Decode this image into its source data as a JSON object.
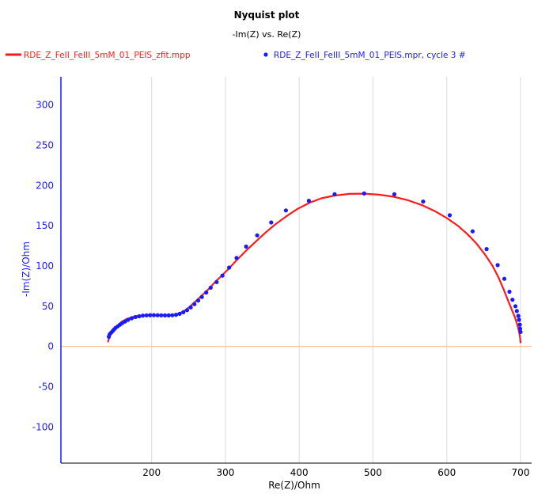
{
  "chart_data": {
    "type": "scatter",
    "title": "Nyquist plot",
    "subtitle": "-Im(Z) vs. Re(Z)",
    "xlabel": "Re(Z)/Ohm",
    "ylabel": "-Im(Z)/Ohm",
    "xlim": [
      77,
      715
    ],
    "ylim": [
      -145,
      335
    ],
    "x_ticks": [
      200,
      300,
      400,
      500,
      600,
      700
    ],
    "y_ticks": [
      -100,
      -50,
      0,
      50,
      100,
      150,
      200,
      250,
      300
    ],
    "grid": true,
    "legend_position": "top",
    "zero_line": true,
    "colors": {
      "fit": "#ff1a1a",
      "measured": "#1a1aff",
      "y_axis": "#1a1aff",
      "grid": "#d9d9d9",
      "zero_line": "#f5cba7"
    },
    "series": [
      {
        "name": "RDE_Z_FeII_FeIII_5mM_01_PEIS_zfit.mpp",
        "kind": "line",
        "x": [
          141,
          143,
          146,
          150,
          155,
          160,
          166,
          172,
          178,
          185,
          192,
          200,
          208,
          216,
          224,
          232,
          238,
          244,
          250,
          256,
          262,
          270,
          278,
          286,
          295,
          305,
          315,
          328,
          342,
          355,
          368,
          383,
          398,
          414,
          430,
          448,
          468,
          488,
          508,
          528,
          548,
          568,
          585,
          600,
          615,
          628,
          640,
          652,
          662,
          670,
          677,
          683,
          688,
          692,
          695,
          697,
          698.5,
          699.5,
          700
        ],
        "y": [
          6,
          13,
          18,
          23,
          27,
          31,
          34,
          36,
          37.5,
          38.2,
          38.5,
          38.7,
          38.6,
          38.4,
          38.5,
          39.2,
          41,
          44,
          48,
          53,
          58,
          65,
          72,
          80,
          88,
          97,
          107,
          119,
          131,
          142,
          152,
          162,
          171,
          178.5,
          184,
          187.5,
          189.5,
          189.8,
          188.5,
          186,
          181.5,
          175,
          167.5,
          159.5,
          150,
          139.5,
          128,
          114,
          100,
          86,
          71,
          57,
          46,
          37,
          29,
          22,
          16,
          10,
          5
        ]
      },
      {
        "name": "RDE_Z_FeII_FeIII_5mM_01_PEIS.mpr, cycle 3 #",
        "kind": "scatter",
        "x": [
          142,
          143,
          145,
          147,
          149,
          151,
          154,
          157,
          160,
          164,
          168,
          173,
          178,
          183,
          188,
          193,
          198,
          203,
          208,
          213,
          218,
          223,
          228,
          233,
          238,
          243,
          248,
          253,
          258,
          263,
          268,
          274,
          280,
          288,
          296,
          305,
          315,
          328,
          343,
          362,
          382,
          413,
          448,
          488,
          529,
          568,
          604,
          635,
          654,
          669,
          678,
          685,
          689,
          693,
          695,
          697,
          698,
          699,
          699.5,
          700
        ],
        "y": [
          12,
          15,
          17,
          19,
          21,
          23,
          25,
          27,
          29,
          31,
          33,
          35,
          36.5,
          37.5,
          38.2,
          38.6,
          38.8,
          38.8,
          38.7,
          38.6,
          38.5,
          38.5,
          38.7,
          39.3,
          40.5,
          42.5,
          45,
          48.5,
          52.5,
          57,
          61.5,
          67,
          73,
          80,
          88,
          98,
          110,
          124,
          138,
          154,
          169,
          181,
          189,
          190,
          189,
          180,
          163,
          143,
          121,
          101,
          84,
          68,
          58,
          50,
          44,
          38,
          33,
          27,
          22,
          18
        ]
      }
    ]
  }
}
